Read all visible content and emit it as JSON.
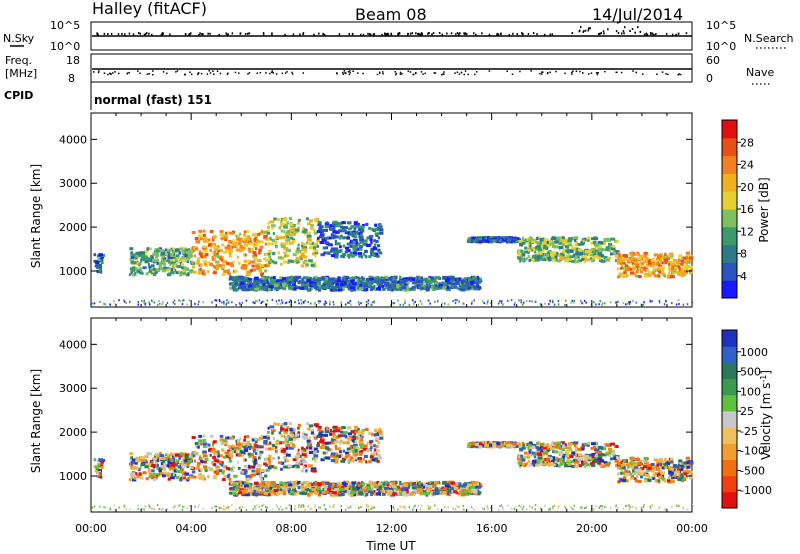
{
  "header": {
    "station": "Halley (fitACF)",
    "beam": "Beam 08",
    "date": "14/Jul/2014"
  },
  "panels": {
    "nsky_label": "N.Sky",
    "nsearch_label": "N.Search",
    "nsky_ticks": [
      "10^5",
      "10^0"
    ],
    "nsearch_ticks": [
      "10^5",
      "10^0"
    ],
    "freq_label_1": "Freq.",
    "freq_label_2": "[MHz]",
    "freq_ticks": [
      "18",
      "8"
    ],
    "nave_label": "Nave",
    "nave_ticks": [
      "60",
      "0"
    ],
    "cpid_label": "CPID",
    "cpid_text": "normal (fast) 151"
  },
  "chart_data": [
    {
      "type": "heatmap",
      "title": "",
      "xlabel": "Time UT",
      "ylabel": "Slant Range [km]",
      "xlim_hours": [
        0,
        24
      ],
      "ylim_km": [
        180,
        4600
      ],
      "x_ticks": [
        "00:00",
        "04:00",
        "08:00",
        "12:00",
        "16:00",
        "20:00",
        "00:00"
      ],
      "y_ticks": [
        1000,
        2000,
        3000,
        4000
      ],
      "colorbar": {
        "label": "Power [dB]",
        "ticks": [
          "4",
          "8",
          "12",
          "16",
          "20",
          "24",
          "28"
        ],
        "range": [
          0,
          32
        ],
        "colors": [
          "#1a1aff",
          "#2a55c0",
          "#2e7a8a",
          "#3a9a6a",
          "#7fc060",
          "#e8d030",
          "#f0b020",
          "#f08020",
          "#e85018",
          "#e01010"
        ]
      },
      "echo_regions": [
        {
          "t_start": 0.1,
          "t_end": 0.4,
          "r_low": 900,
          "r_high": 1400,
          "level": 0.2
        },
        {
          "t_start": 1.5,
          "t_end": 4.0,
          "r_low": 900,
          "r_high": 1500,
          "level": 0.35
        },
        {
          "t_start": 4.0,
          "t_end": 7.0,
          "r_low": 900,
          "r_high": 1900,
          "level": 0.7
        },
        {
          "t_start": 7.0,
          "t_end": 9.0,
          "r_low": 1100,
          "r_high": 2200,
          "level": 0.5
        },
        {
          "t_start": 9.0,
          "t_end": 11.5,
          "r_low": 1300,
          "r_high": 2100,
          "level": 0.15
        },
        {
          "t_start": 5.5,
          "t_end": 15.5,
          "r_low": 550,
          "r_high": 850,
          "level": 0.2
        },
        {
          "t_start": 15.0,
          "t_end": 17.0,
          "r_low": 1650,
          "r_high": 1750,
          "level": 0.15
        },
        {
          "t_start": 17.0,
          "t_end": 21.0,
          "r_low": 1200,
          "r_high": 1750,
          "level": 0.4
        },
        {
          "t_start": 21.0,
          "t_end": 23.9,
          "r_low": 850,
          "r_high": 1400,
          "level": 0.7
        }
      ]
    },
    {
      "type": "heatmap",
      "title": "",
      "xlabel": "Time UT",
      "ylabel": "Slant Range [km]",
      "xlim_hours": [
        0,
        24
      ],
      "ylim_km": [
        180,
        4600
      ],
      "x_ticks": [
        "00:00",
        "04:00",
        "08:00",
        "12:00",
        "16:00",
        "20:00",
        "00:00"
      ],
      "y_ticks": [
        1000,
        2000,
        3000,
        4000
      ],
      "colorbar": {
        "label": "Velocity [m s^-1]",
        "ticks": [
          "1000",
          "500",
          "100",
          "25",
          "-25",
          "-100",
          "-500",
          "-1000"
        ],
        "colors": [
          "#2030c0",
          "#3060c8",
          "#2a7a5a",
          "#3a9a50",
          "#60c040",
          "#c8c8c8",
          "#f0c060",
          "#f0a030",
          "#f07010",
          "#f04010",
          "#e01010"
        ]
      }
    }
  ]
}
